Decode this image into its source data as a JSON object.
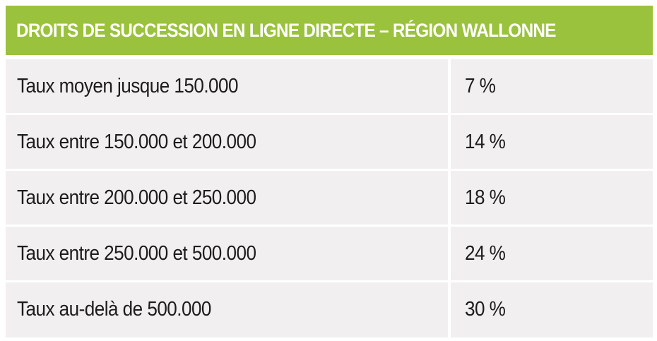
{
  "table": {
    "title": "DROITS DE SUCCESSION EN LIGNE DIRECTE – RÉGION WALLONNE",
    "rows": [
      {
        "label": "Taux moyen jusque 150.000",
        "value": "7 %"
      },
      {
        "label": "Taux entre 150.000 et 200.000",
        "value": "14 %"
      },
      {
        "label": "Taux entre 200.000 et 250.000",
        "value": "18 %"
      },
      {
        "label": "Taux entre 250.000 et 500.000",
        "value": "24 %"
      },
      {
        "label": "Taux au-delà de 500.000",
        "value": "30 %"
      }
    ]
  },
  "colors": {
    "header_background": "#9ac23c",
    "header_text": "#ffffff",
    "cell_background": "#f2eff1",
    "text": "#1c1c1c",
    "separator": "#ffffff"
  }
}
